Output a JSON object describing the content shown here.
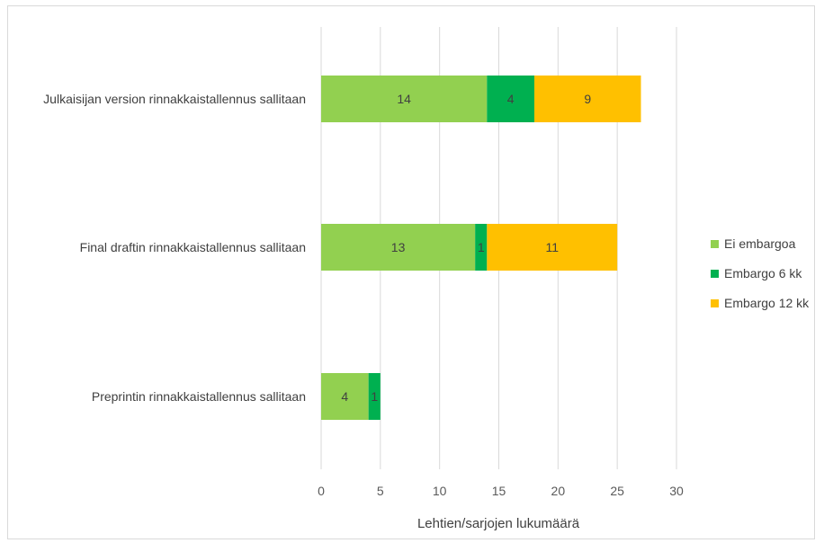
{
  "chart_data": {
    "type": "bar",
    "orientation": "horizontal",
    "stacked": true,
    "title": "",
    "xlabel": "Lehtien/sarjojen lukumäärä",
    "ylabel": "",
    "xlim": [
      0,
      30
    ],
    "xticks": [
      "0",
      "5",
      "10",
      "15",
      "20",
      "25",
      "30"
    ],
    "grid": "vertical",
    "legend_position": "right",
    "categories": [
      "Julkaisijan version rinnakkaistallennus sallitaan",
      "Final draftin rinnakkaistallennus sallitaan",
      "Preprintin rinnakkaistallennus sallitaan"
    ],
    "series": [
      {
        "name": "Ei embargoa",
        "color": "#92d050",
        "values": [
          14,
          13,
          4
        ]
      },
      {
        "name": "Embargo 6 kk",
        "color": "#00b050",
        "values": [
          4,
          1,
          1
        ]
      },
      {
        "name": "Embargo 12 kk",
        "color": "#ffc000",
        "values": [
          9,
          11,
          null
        ]
      }
    ]
  }
}
